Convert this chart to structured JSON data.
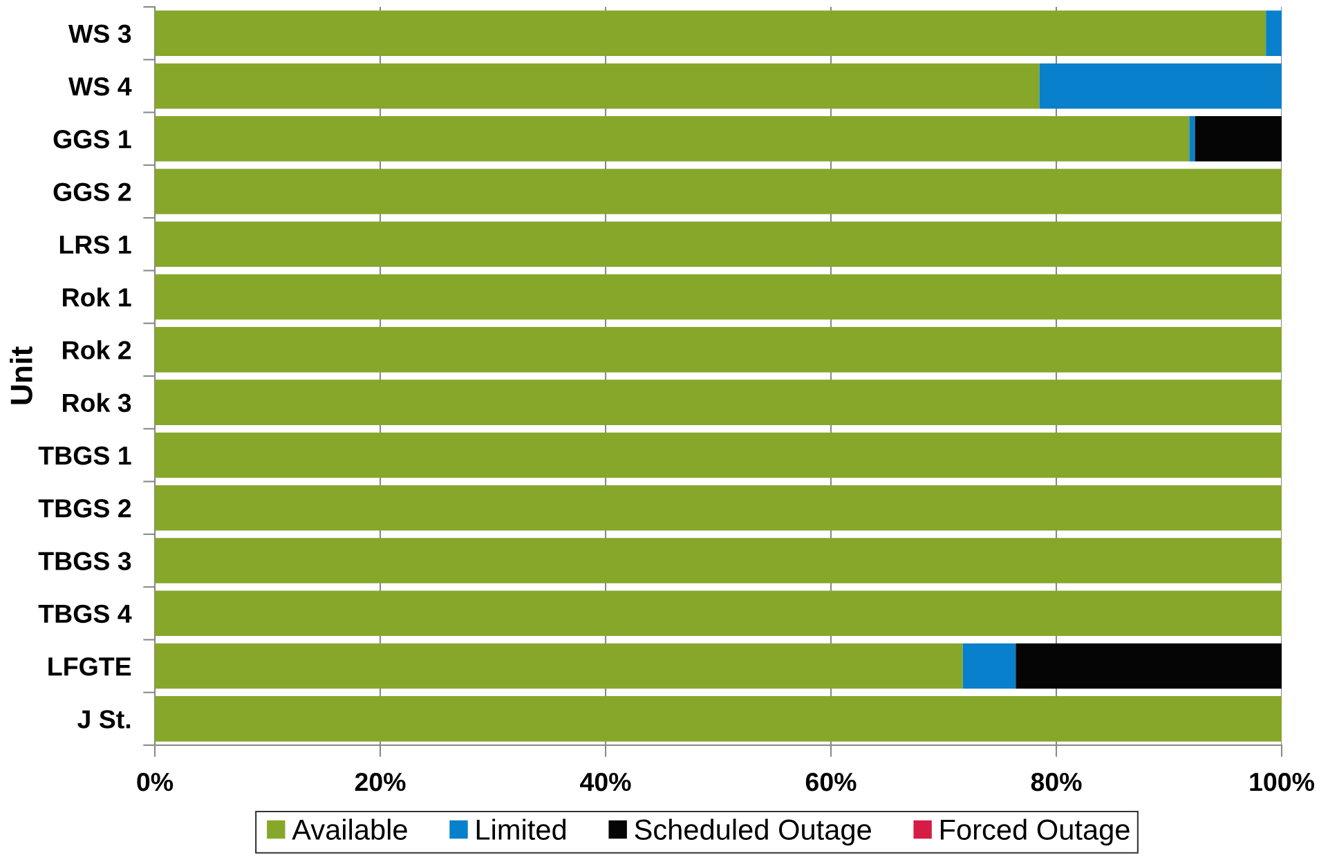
{
  "chart_data": {
    "type": "bar",
    "orientation": "horizontal",
    "stacked": true,
    "ylabel": "Unit",
    "categories": [
      "WS 3",
      "WS 4",
      "GGS 1",
      "GGS 2",
      "LRS 1",
      "Rok 1",
      "Rok 2",
      "Rok 3",
      "TBGS 1",
      "TBGS 2",
      "TBGS 3",
      "TBGS 4",
      "LFGTE",
      "J St."
    ],
    "series": [
      {
        "name": "Available",
        "color": "#86a72a",
        "values": [
          98.6,
          78.5,
          91.8,
          100,
          100,
          100,
          100,
          100,
          100,
          100,
          100,
          100,
          71.7,
          100
        ]
      },
      {
        "name": "Limited",
        "color": "#0880cc",
        "values": [
          1.4,
          21.5,
          0.5,
          0,
          0,
          0,
          0,
          0,
          0,
          0,
          0,
          0,
          4.7,
          0
        ]
      },
      {
        "name": "Scheduled Outage",
        "color": "#050505",
        "values": [
          0,
          0,
          7.7,
          0,
          0,
          0,
          0,
          0,
          0,
          0,
          0,
          0,
          23.6,
          0
        ]
      },
      {
        "name": "Forced Outage",
        "color": "#d41c44",
        "values": [
          0,
          0,
          0,
          0,
          0,
          0,
          0,
          0,
          0,
          0,
          0,
          0,
          0,
          0
        ]
      }
    ],
    "xlim": [
      0,
      100
    ],
    "xticks": [
      {
        "value": 0,
        "label": "0%"
      },
      {
        "value": 20,
        "label": "20%"
      },
      {
        "value": 40,
        "label": "40%"
      },
      {
        "value": 60,
        "label": "60%"
      },
      {
        "value": 80,
        "label": "80%"
      },
      {
        "value": 100,
        "label": "100%"
      }
    ],
    "grid": "x",
    "legend": "bottom"
  }
}
